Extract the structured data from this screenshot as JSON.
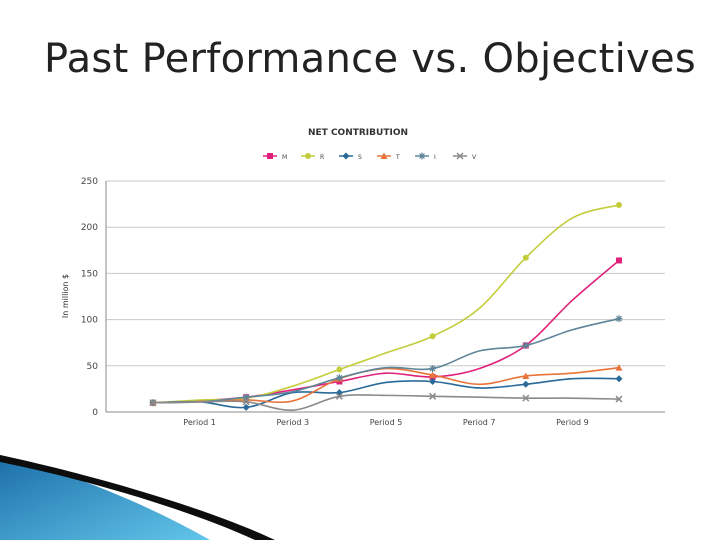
{
  "slide": {
    "title": "Past Performance vs. Objectives"
  },
  "chart_data": {
    "type": "line",
    "title": "NET CONTRIBUTION",
    "ylabel": "In million $",
    "xlabel": "",
    "ylim": [
      0,
      250
    ],
    "yticks": [
      0,
      50,
      100,
      150,
      200,
      250
    ],
    "x": [
      1,
      2,
      3,
      4,
      5,
      6,
      7,
      8,
      9,
      10,
      11
    ],
    "xtick_labels": [
      {
        "x": 2,
        "label": "Period 1"
      },
      {
        "x": 4,
        "label": "Period 3"
      },
      {
        "x": 6,
        "label": "Period 5"
      },
      {
        "x": 8,
        "label": "Period 7"
      },
      {
        "x": 10,
        "label": "Period 9"
      }
    ],
    "legend_position": "top",
    "grid": "horizontal",
    "series": [
      {
        "name": "M",
        "color": "#e0207a",
        "marker": "square",
        "values": [
          10,
          12,
          16,
          24,
          33,
          42,
          38,
          47,
          72,
          121,
          164
        ]
      },
      {
        "name": "R",
        "color": "#c3cd3b",
        "marker": "circle",
        "values": [
          10,
          13,
          15,
          28,
          46,
          64,
          82,
          112,
          167,
          210,
          224
        ]
      },
      {
        "name": "S",
        "color": "#2a6a99",
        "marker": "diamond",
        "values": [
          10,
          11,
          5,
          21,
          21,
          32,
          33,
          26,
          30,
          36,
          36
        ]
      },
      {
        "name": "T",
        "color": "#e8743a",
        "marker": "triangle",
        "values": [
          10,
          11,
          13,
          12,
          36,
          47,
          40,
          30,
          39,
          42,
          48
        ]
      },
      {
        "name": "I",
        "color": "#5f8598",
        "marker": "star",
        "values": [
          10,
          11,
          16,
          22,
          37,
          48,
          47,
          66,
          72,
          89,
          101
        ]
      },
      {
        "name": "V",
        "color": "#8a8a8a",
        "marker": "x",
        "values": [
          10,
          11,
          11,
          2,
          17,
          18,
          17,
          16,
          15,
          15,
          14
        ]
      }
    ]
  },
  "decoration": {
    "accent_colors": [
      "#1e6fa3",
      "#5ec3e8",
      "#0d0d0d"
    ]
  }
}
